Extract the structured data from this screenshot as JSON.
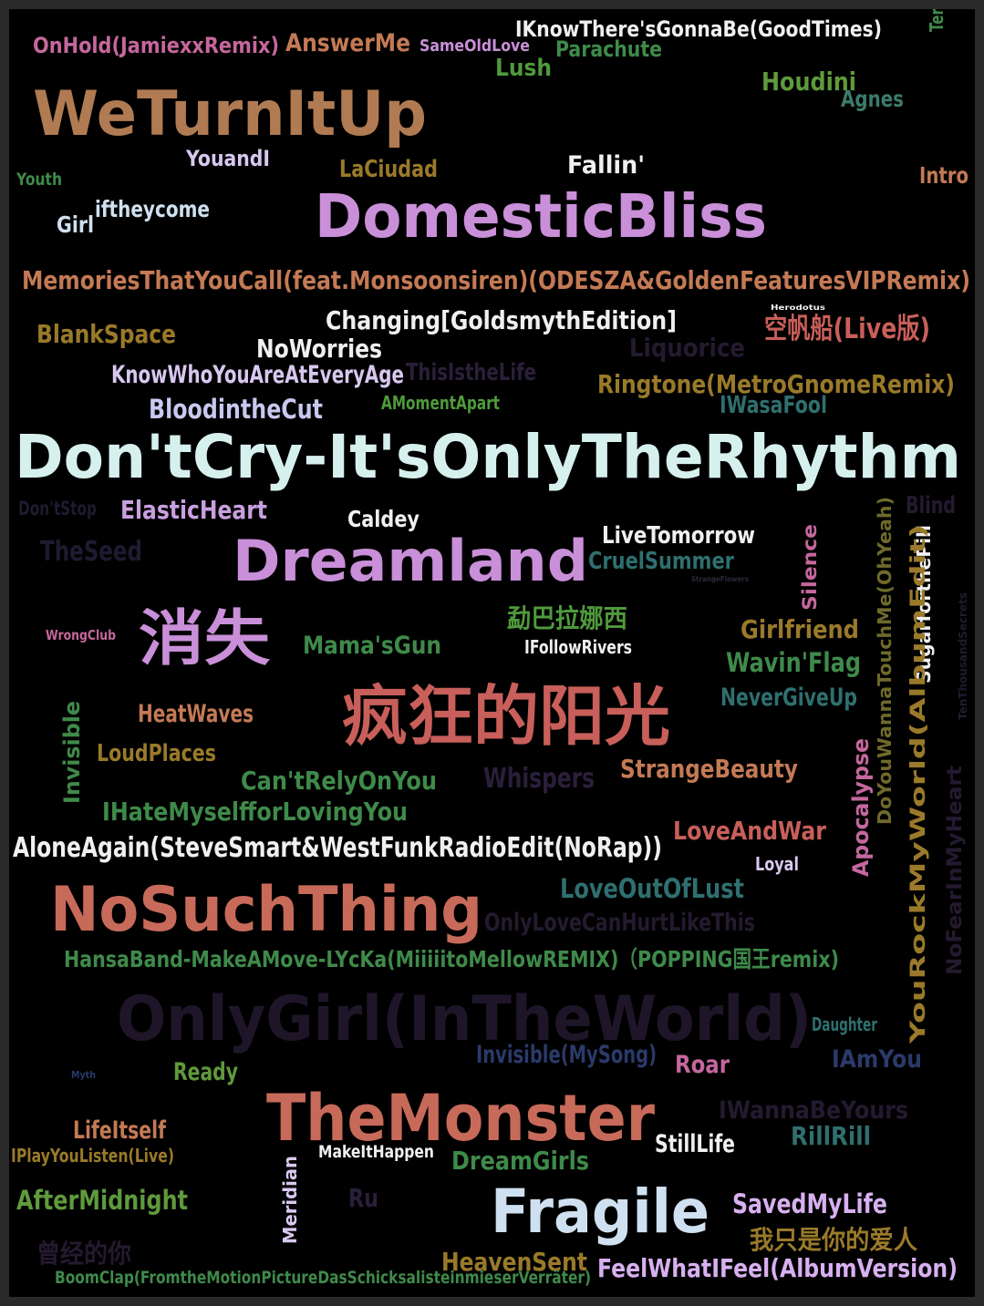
{
  "words": [
    {
      "text": "OnHold(JamiexxRemix)",
      "color": "#c5679d"
    },
    {
      "text": "AnswerMe",
      "color": "#c47a55"
    },
    {
      "text": "SameOldLove",
      "color": "#c98fd8"
    },
    {
      "text": "IKnowThere'sGonnaBe(GoodTimes)",
      "color": "#f0f0f0"
    },
    {
      "text": "Parachute",
      "color": "#3f8a4a"
    },
    {
      "text": "Lush",
      "color": "#4f9a3c"
    },
    {
      "text": "TerraIncognita",
      "color": "#3f8a4a"
    },
    {
      "text": "Houdini",
      "color": "#5f9a3c"
    },
    {
      "text": "Agnes",
      "color": "#3d7a6a"
    },
    {
      "text": "WeTurnItUp",
      "color": "#b07b52"
    },
    {
      "text": "YouandI",
      "color": "#d8c8f0"
    },
    {
      "text": "LaCiudad",
      "color": "#9a7a2a"
    },
    {
      "text": "Fallin'",
      "color": "#f0f0f0"
    },
    {
      "text": "Youth",
      "color": "#3f8a4a"
    },
    {
      "text": "Intro",
      "color": "#c47a55"
    },
    {
      "text": "Girl",
      "color": "#cfe0f0"
    },
    {
      "text": "iftheycome",
      "color": "#cfe0f0"
    },
    {
      "text": "DomesticBliss",
      "color": "#c98fd8"
    },
    {
      "text": "MemoriesThatYouCall(feat.Monsoonsiren)(ODESZA&GoldenFeaturesVIPRemix)",
      "color": "#c47a55"
    },
    {
      "text": "BlankSpace",
      "color": "#9a7a2a"
    },
    {
      "text": "Changing[GoldsmythEdition]",
      "color": "#f0f0f0"
    },
    {
      "text": "Herodotus",
      "color": "#f0f0f0"
    },
    {
      "text": "空帆船(Live版)",
      "color": "#c85f5a"
    },
    {
      "text": "NoWorries",
      "color": "#f0f0f0"
    },
    {
      "text": "Liquorice",
      "color": "#241a30"
    },
    {
      "text": "KnowWhoYouAreAtEveryAge",
      "color": "#d8c8f0"
    },
    {
      "text": "ThisIstheLife",
      "color": "#2a1f3a"
    },
    {
      "text": "Ringtone(MetroGnomeRemix)",
      "color": "#9a7a2a"
    },
    {
      "text": "BloodintheCut",
      "color": "#c8c8f0"
    },
    {
      "text": "AMomentApart",
      "color": "#4f9a3c"
    },
    {
      "text": "IWasaFool",
      "color": "#2f6f6f"
    },
    {
      "text": "Don'tCry-It'sOnlyTheRhythm",
      "color": "#d6f0ee"
    },
    {
      "text": "Don'tStop",
      "color": "#1e1a30"
    },
    {
      "text": "ElasticHeart",
      "color": "#c8a0e0"
    },
    {
      "text": "Caldey",
      "color": "#f0f0f0"
    },
    {
      "text": "Blind",
      "color": "#241a30"
    },
    {
      "text": "TheSeed",
      "color": "#1e1a30"
    },
    {
      "text": "Dreamland",
      "color": "#c98fd8"
    },
    {
      "text": "LiveTomorrow",
      "color": "#f0f0f0"
    },
    {
      "text": "CruelSummer",
      "color": "#2f6f6f"
    },
    {
      "text": "StrangeFlowers",
      "color": "#2a2a3a"
    },
    {
      "text": "Silence",
      "color": "#c5679d"
    },
    {
      "text": "DoYouWannaTouchMe(OhYeah)",
      "color": "#6f6a2a"
    },
    {
      "text": "SugarforthePill",
      "color": "#f0f0f0"
    },
    {
      "text": "WrongClub",
      "color": "#c5679d"
    },
    {
      "text": "消失",
      "color": "#c98fd8"
    },
    {
      "text": "勐巴拉娜西",
      "color": "#4f9a3c"
    },
    {
      "text": "Girlfriend",
      "color": "#9a7a2a"
    },
    {
      "text": "Mama'sGun",
      "color": "#3f8a4a"
    },
    {
      "text": "IFollowRivers",
      "color": "#f0f0f0"
    },
    {
      "text": "Wavin'Flag",
      "color": "#3f8a4a"
    },
    {
      "text": "TenThousandSecrets",
      "color": "#241a30"
    },
    {
      "text": "疯狂的阳光",
      "color": "#c85f5a"
    },
    {
      "text": "NeverGiveUp",
      "color": "#2f6f6f"
    },
    {
      "text": "Invisible",
      "color": "#3f8a4a"
    },
    {
      "text": "HeatWaves",
      "color": "#c47a55"
    },
    {
      "text": "LoudPlaces",
      "color": "#9a7a2a"
    },
    {
      "text": "Can'tRelyOnYou",
      "color": "#3f8a4a"
    },
    {
      "text": "Whispers",
      "color": "#2a1f3a"
    },
    {
      "text": "StrangeBeauty",
      "color": "#c47a55"
    },
    {
      "text": "Apocalypse",
      "color": "#c5679d"
    },
    {
      "text": "YouRockMyWorld(AlbumEdit)",
      "color": "#9a7a2a"
    },
    {
      "text": "NoFearInMyHeart",
      "color": "#241a30"
    },
    {
      "text": "IHateMyselfforLovingYou",
      "color": "#3f8a4a"
    },
    {
      "text": "AloneAgain(SteveSmart&WestFunkRadioEdit(NoRap))",
      "color": "#f0f0f0"
    },
    {
      "text": "LoveAndWar",
      "color": "#c85f5a"
    },
    {
      "text": "Loyal",
      "color": "#d8c8f0"
    },
    {
      "text": "NoSuchThing",
      "color": "#c86a5a"
    },
    {
      "text": "LoveOutOfLust",
      "color": "#2f6f6f"
    },
    {
      "text": "OnlyLoveCanHurtLikeThis",
      "color": "#241a30"
    },
    {
      "text": "HansaBand-MakeAMove-LYcKa(MiiiiitoMellowREMIX)（POPPING国王remix)",
      "color": "#3f8a4a"
    },
    {
      "text": "OnlyGirl(InTheWorld)",
      "color": "#1e1628"
    },
    {
      "text": "Daughter",
      "color": "#2f6f6f"
    },
    {
      "text": "Invisible(MySong)",
      "color": "#2a3a6a"
    },
    {
      "text": "Roar",
      "color": "#c5679d"
    },
    {
      "text": "IAmYou",
      "color": "#2a3a6a"
    },
    {
      "text": "Ready",
      "color": "#5f9a3c"
    },
    {
      "text": "Myth",
      "color": "#2a3a6a"
    },
    {
      "text": "TheMonster",
      "color": "#c86a5a"
    },
    {
      "text": "IWannaBeYours",
      "color": "#241a30"
    },
    {
      "text": "LifeItself",
      "color": "#c47a55"
    },
    {
      "text": "IPlayYouListen(Live)",
      "color": "#9a7a2a"
    },
    {
      "text": "MakeItHappen",
      "color": "#f0f0f0"
    },
    {
      "text": "StillLife",
      "color": "#f0f0f0"
    },
    {
      "text": "RillRill",
      "color": "#2f6f6f"
    },
    {
      "text": "DreamGirls",
      "color": "#3f8a4a"
    },
    {
      "text": "AfterMidnight",
      "color": "#5f9a3c"
    },
    {
      "text": "Meridian",
      "color": "#d8c8f0"
    },
    {
      "text": "Ru",
      "color": "#2a1f3a"
    },
    {
      "text": "Fragile",
      "color": "#cfe0f0"
    },
    {
      "text": "SavedMyLife",
      "color": "#d8b0f0"
    },
    {
      "text": "曾经的你",
      "color": "#241a30"
    },
    {
      "text": "我只是你的爱人",
      "color": "#9a7a2a"
    },
    {
      "text": "HeavenSent",
      "color": "#9a7a2a"
    },
    {
      "text": "BoomClap(FromtheMotionPictureDasSchicksalisteinmieserVerräter)",
      "color": "#3f8a4a"
    },
    {
      "text": "FeelWhatIFeel(AlbumVersion)",
      "color": "#d8b0f0"
    }
  ]
}
